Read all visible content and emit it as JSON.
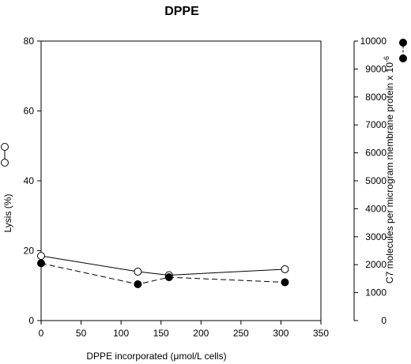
{
  "chart_data": {
    "type": "line",
    "title": "DPPE",
    "xlabel": "DPPE incorporated (μmol/L cells)",
    "ylabel_left": "Lysis (%)",
    "ylabel_right": "C7 molecules per microgram membrane protein x 10",
    "ylabel_right_superscript": "-6",
    "xlim": [
      0,
      350
    ],
    "ylim_left": [
      0,
      80
    ],
    "ylim_right": [
      0,
      10000
    ],
    "x_ticks": [
      0,
      50,
      100,
      150,
      200,
      250,
      300,
      350
    ],
    "y_ticks_left": [
      0,
      20,
      40,
      60,
      80
    ],
    "y_ticks_right": [
      0,
      1000,
      2000,
      3000,
      4000,
      5000,
      6000,
      7000,
      8000,
      9000,
      10000
    ],
    "grid": false,
    "series": [
      {
        "axis": "left",
        "marker": "open-circle",
        "line_style": "solid",
        "x": [
          0,
          121,
          160,
          305
        ],
        "y": [
          18.5,
          14.0,
          13.0,
          14.7
        ]
      },
      {
        "axis": "right",
        "marker": "filled-circle",
        "line_style": "dashed",
        "x": [
          0,
          121,
          160,
          305
        ],
        "y": [
          2050,
          1300,
          1550,
          1370
        ]
      }
    ]
  }
}
